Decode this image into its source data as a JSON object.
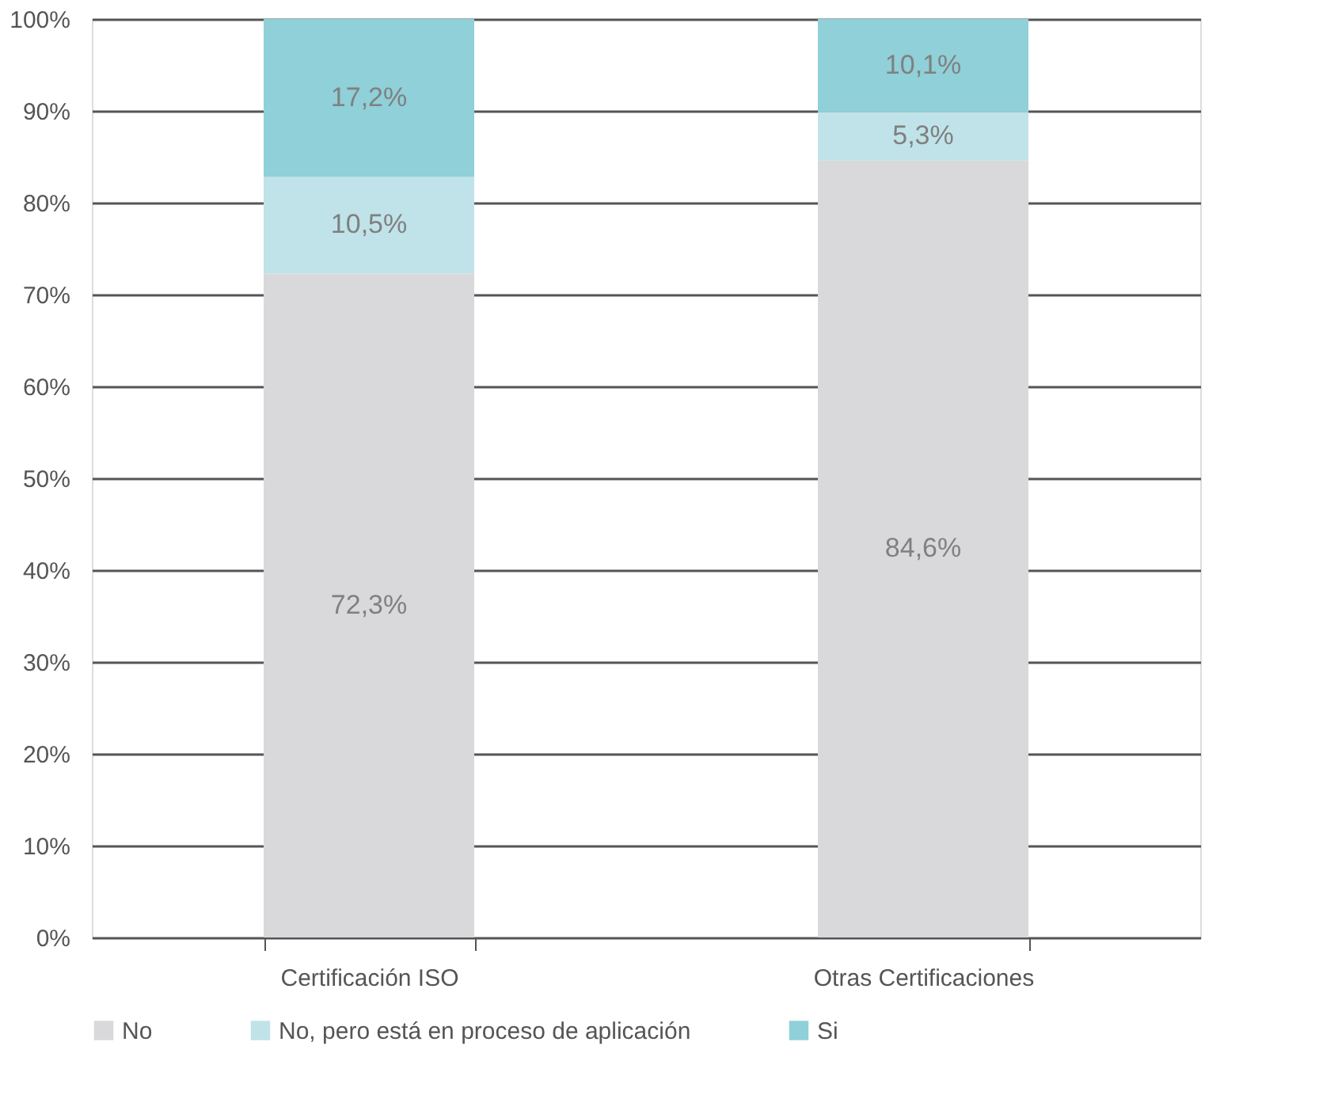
{
  "chart_data": {
    "type": "bar",
    "stacked": true,
    "categories": [
      "Certificación ISO",
      "Otras Certificaciones"
    ],
    "series": [
      {
        "name": "No",
        "color": "#d9d9db",
        "values": [
          72.3,
          84.6
        ],
        "value_labels": [
          "72,3%",
          "84,6%"
        ]
      },
      {
        "name": "No, pero está en proceso de aplicación",
        "color": "#bfe3e9",
        "values": [
          10.5,
          5.3
        ],
        "value_labels": [
          "10,5%",
          "5,3%"
        ]
      },
      {
        "name": "Si",
        "color": "#8fd0d9",
        "values": [
          17.2,
          10.1
        ],
        "value_labels": [
          "17,2%",
          "10,1%"
        ]
      }
    ],
    "ylim": [
      0,
      100
    ],
    "yticks": [
      {
        "value": 0,
        "label": "0%"
      },
      {
        "value": 10,
        "label": "10%"
      },
      {
        "value": 20,
        "label": "20%"
      },
      {
        "value": 30,
        "label": "30%"
      },
      {
        "value": 40,
        "label": "40%"
      },
      {
        "value": 50,
        "label": "50%"
      },
      {
        "value": 60,
        "label": "60%"
      },
      {
        "value": 70,
        "label": "70%"
      },
      {
        "value": 80,
        "label": "80%"
      },
      {
        "value": 90,
        "label": "90%"
      },
      {
        "value": 100,
        "label": "100%"
      }
    ],
    "grid": "y",
    "legend": "bottom"
  }
}
